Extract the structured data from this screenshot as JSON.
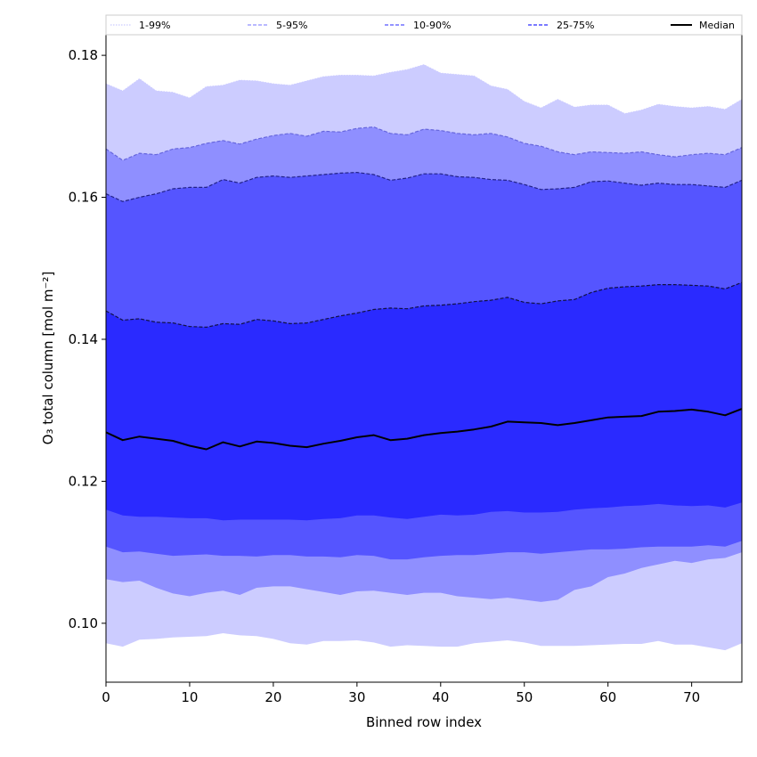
{
  "chart_data": {
    "type": "area",
    "title": "",
    "xlabel": "Binned row index",
    "ylabel": "O₃ total column [mol m⁻²]",
    "xlim": [
      0,
      76
    ],
    "ylim": [
      0.0917,
      0.1829
    ],
    "grid": false,
    "legend_position": "top",
    "x_ticks": [
      0,
      10,
      20,
      30,
      40,
      50,
      60,
      70
    ],
    "x_tick_labels": [
      "0",
      "10",
      "20",
      "30",
      "40",
      "50",
      "60",
      "70"
    ],
    "y_ticks": [
      0.1,
      0.12,
      0.14,
      0.16,
      0.18
    ],
    "y_tick_labels": [
      "0.10",
      "0.12",
      "0.14",
      "0.16",
      "0.18"
    ],
    "x": [
      0,
      2,
      4,
      6,
      8,
      10,
      12,
      14,
      16,
      18,
      20,
      22,
      24,
      26,
      28,
      30,
      32,
      34,
      36,
      38,
      40,
      42,
      44,
      46,
      48,
      50,
      52,
      54,
      56,
      58,
      60,
      62,
      64,
      66,
      68,
      70,
      72,
      74,
      76
    ],
    "bands": [
      {
        "name": "1-99%",
        "color": "#ccccff",
        "line_color": "#ccccff",
        "upper_style": "dotted",
        "lower": [
          0.0972,
          0.0967,
          0.0977,
          0.0978,
          0.098,
          0.0981,
          0.0982,
          0.0986,
          0.0983,
          0.0982,
          0.0978,
          0.0972,
          0.097,
          0.0975,
          0.0975,
          0.0976,
          0.0973,
          0.0967,
          0.0969,
          0.0968,
          0.0967,
          0.0967,
          0.0972,
          0.0974,
          0.0976,
          0.0973,
          0.0968,
          0.0968,
          0.0968,
          0.0969,
          0.097,
          0.0971,
          0.0971,
          0.0975,
          0.097,
          0.097,
          0.0966,
          0.0962,
          0.0972
        ],
        "upper": [
          0.176,
          0.175,
          0.1767,
          0.175,
          0.1748,
          0.174,
          0.1756,
          0.1758,
          0.1765,
          0.1764,
          0.176,
          0.1758,
          0.1764,
          0.177,
          0.1772,
          0.1772,
          0.1771,
          0.1776,
          0.178,
          0.1787,
          0.1775,
          0.1773,
          0.1771,
          0.1757,
          0.1752,
          0.1735,
          0.1726,
          0.1738,
          0.1727,
          0.173,
          0.173,
          0.1718,
          0.1723,
          0.1731,
          0.1728,
          0.1726,
          0.1728,
          0.1724,
          0.1738
        ]
      },
      {
        "name": "5-95%",
        "color": "#8f8fff",
        "line_color": "#6666dd",
        "upper_style": "dashed",
        "lower": [
          0.1062,
          0.1058,
          0.106,
          0.105,
          0.1042,
          0.1038,
          0.1043,
          0.1046,
          0.104,
          0.105,
          0.1052,
          0.1052,
          0.1048,
          0.1044,
          0.104,
          0.1045,
          0.1046,
          0.1043,
          0.104,
          0.1043,
          0.1043,
          0.1038,
          0.1036,
          0.1034,
          0.1036,
          0.1033,
          0.103,
          0.1033,
          0.1047,
          0.1052,
          0.1065,
          0.107,
          0.1078,
          0.1083,
          0.1088,
          0.1085,
          0.109,
          0.1092,
          0.11
        ],
        "upper": [
          0.1668,
          0.1652,
          0.1662,
          0.166,
          0.1668,
          0.167,
          0.1676,
          0.168,
          0.1675,
          0.1682,
          0.1687,
          0.169,
          0.1686,
          0.1693,
          0.1692,
          0.1697,
          0.1699,
          0.169,
          0.1688,
          0.1696,
          0.1694,
          0.169,
          0.1688,
          0.169,
          0.1685,
          0.1676,
          0.1672,
          0.1664,
          0.166,
          0.1664,
          0.1663,
          0.1662,
          0.1664,
          0.166,
          0.1657,
          0.166,
          0.1662,
          0.166,
          0.167
        ]
      },
      {
        "name": "10-90%",
        "color": "#5555ff",
        "line_color": "#222288",
        "upper_style": "dashed",
        "lower": [
          0.1108,
          0.11,
          0.1101,
          0.1098,
          0.1095,
          0.1096,
          0.1097,
          0.1095,
          0.1095,
          0.1094,
          0.1096,
          0.1096,
          0.1094,
          0.1094,
          0.1093,
          0.1096,
          0.1095,
          0.109,
          0.109,
          0.1093,
          0.1095,
          0.1096,
          0.1096,
          0.1098,
          0.11,
          0.11,
          0.1098,
          0.11,
          0.1102,
          0.1104,
          0.1104,
          0.1105,
          0.1107,
          0.1108,
          0.1108,
          0.1108,
          0.111,
          0.1108,
          0.1116
        ],
        "upper": [
          0.1605,
          0.1594,
          0.16,
          0.1605,
          0.1612,
          0.1614,
          0.1614,
          0.1625,
          0.162,
          0.1628,
          0.163,
          0.1628,
          0.163,
          0.1632,
          0.1634,
          0.1635,
          0.1632,
          0.1624,
          0.1627,
          0.1633,
          0.1633,
          0.1629,
          0.1628,
          0.1625,
          0.1624,
          0.1618,
          0.1611,
          0.1612,
          0.1614,
          0.1622,
          0.1623,
          0.162,
          0.1617,
          0.162,
          0.1618,
          0.1618,
          0.1616,
          0.1614,
          0.1624
        ]
      },
      {
        "name": "25-75%",
        "color": "#2a2aff",
        "line_color": "#111144",
        "upper_style": "dashed",
        "lower": [
          0.116,
          0.1152,
          0.115,
          0.115,
          0.1149,
          0.1148,
          0.1148,
          0.1145,
          0.1146,
          0.1146,
          0.1146,
          0.1146,
          0.1145,
          0.1147,
          0.1148,
          0.1152,
          0.1152,
          0.1149,
          0.1147,
          0.115,
          0.1153,
          0.1152,
          0.1153,
          0.1157,
          0.1158,
          0.1156,
          0.1156,
          0.1157,
          0.116,
          0.1162,
          0.1163,
          0.1165,
          0.1166,
          0.1168,
          0.1166,
          0.1165,
          0.1166,
          0.1163,
          0.117
        ],
        "upper": [
          0.144,
          0.1427,
          0.1429,
          0.1424,
          0.1423,
          0.1418,
          0.1417,
          0.1422,
          0.1421,
          0.1428,
          0.1426,
          0.1422,
          0.1423,
          0.1428,
          0.1433,
          0.1437,
          0.1442,
          0.1444,
          0.1443,
          0.1447,
          0.1448,
          0.145,
          0.1453,
          0.1455,
          0.1459,
          0.1452,
          0.145,
          0.1454,
          0.1456,
          0.1466,
          0.1472,
          0.1474,
          0.1475,
          0.1477,
          0.1477,
          0.1476,
          0.1475,
          0.1471,
          0.148
        ]
      }
    ],
    "series": [
      {
        "name": "Median",
        "color": "#000000",
        "style": "solid",
        "values": [
          0.1269,
          0.1258,
          0.1263,
          0.126,
          0.1257,
          0.125,
          0.1245,
          0.1255,
          0.1249,
          0.1256,
          0.1254,
          0.125,
          0.1248,
          0.1253,
          0.1257,
          0.1262,
          0.1265,
          0.1258,
          0.126,
          0.1265,
          0.1268,
          0.127,
          0.1273,
          0.1277,
          0.1284,
          0.1283,
          0.1282,
          0.1279,
          0.1282,
          0.1286,
          0.129,
          0.1291,
          0.1292,
          0.1298,
          0.1299,
          0.1301,
          0.1298,
          0.1293,
          0.1302
        ]
      }
    ],
    "legend": [
      {
        "label": "1-99%",
        "style": "dotted",
        "color": "#ccccff"
      },
      {
        "label": "5-95%",
        "style": "dashed",
        "color": "#8f8fff"
      },
      {
        "label": "10-90%",
        "style": "dashed",
        "color": "#5555ff"
      },
      {
        "label": "25-75%",
        "style": "dashed",
        "color": "#2a2aff"
      },
      {
        "label": "Median",
        "style": "solid",
        "color": "#000000"
      }
    ]
  }
}
